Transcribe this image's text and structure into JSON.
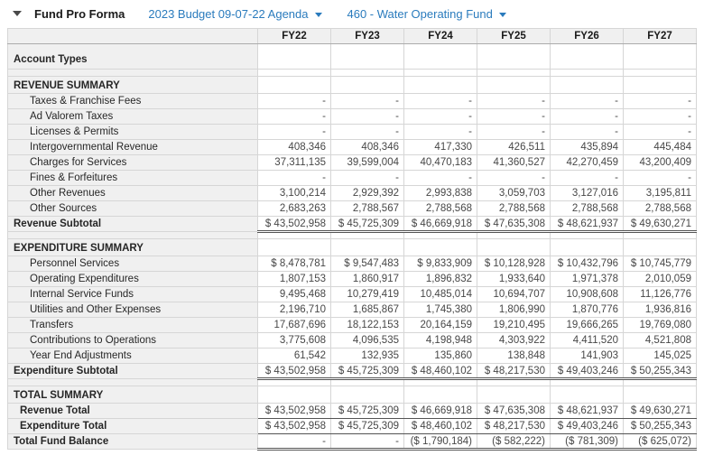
{
  "header": {
    "collapse_caret": "collapse",
    "title": "Fund Pro Forma",
    "budget_dropdown": "2023 Budget 09-07-22 Agenda",
    "fund_dropdown": "460 - Water Operating Fund"
  },
  "colors": {
    "link_blue": "#2a7bbd",
    "panel_gray": "#f0f0f0",
    "total_border": "#545454"
  },
  "table": {
    "year_columns": [
      "FY22",
      "FY23",
      "FY24",
      "FY25",
      "FY26",
      "FY27"
    ],
    "rows": [
      {
        "type": "group",
        "label": "Account Types",
        "values": [
          "",
          "",
          "",
          "",
          "",
          ""
        ]
      },
      {
        "type": "spacer",
        "label": "",
        "values": [
          "",
          "",
          "",
          "",
          "",
          ""
        ]
      },
      {
        "type": "section",
        "label": "REVENUE SUMMARY",
        "values": [
          "",
          "",
          "",
          "",
          "",
          ""
        ]
      },
      {
        "type": "detail",
        "label": "Taxes & Franchise Fees",
        "values": [
          "-",
          "-",
          "-",
          "-",
          "-",
          "-"
        ]
      },
      {
        "type": "detail",
        "label": "Ad Valorem Taxes",
        "values": [
          "-",
          "-",
          "-",
          "-",
          "-",
          "-"
        ]
      },
      {
        "type": "detail",
        "label": "Licenses & Permits",
        "values": [
          "-",
          "-",
          "-",
          "-",
          "-",
          "-"
        ]
      },
      {
        "type": "detail",
        "label": "Intergovernmental Revenue",
        "values": [
          "408,346",
          "408,346",
          "417,330",
          "426,511",
          "435,894",
          "445,484"
        ]
      },
      {
        "type": "detail",
        "label": "Charges for Services",
        "values": [
          "37,311,135",
          "39,599,004",
          "40,470,183",
          "41,360,527",
          "42,270,459",
          "43,200,409"
        ]
      },
      {
        "type": "detail",
        "label": "Fines & Forfeitures",
        "values": [
          "-",
          "-",
          "-",
          "-",
          "-",
          "-"
        ]
      },
      {
        "type": "detail",
        "label": "Other Revenues",
        "values": [
          "3,100,214",
          "2,929,392",
          "2,993,838",
          "3,059,703",
          "3,127,016",
          "3,195,811"
        ]
      },
      {
        "type": "detail",
        "label": "Other Sources",
        "values": [
          "2,683,263",
          "2,788,567",
          "2,788,568",
          "2,788,568",
          "2,788,568",
          "2,788,568"
        ]
      },
      {
        "type": "subtotal",
        "label": "Revenue Subtotal",
        "values": [
          "$ 43,502,958",
          "$ 45,725,309",
          "$ 46,669,918",
          "$ 47,635,308",
          "$ 48,621,937",
          "$ 49,630,271"
        ]
      },
      {
        "type": "spacer",
        "label": "",
        "values": [
          "",
          "",
          "",
          "",
          "",
          ""
        ]
      },
      {
        "type": "section",
        "label": "EXPENDITURE SUMMARY",
        "values": [
          "",
          "",
          "",
          "",
          "",
          ""
        ]
      },
      {
        "type": "detail",
        "label": "Personnel Services",
        "values": [
          "$ 8,478,781",
          "$ 9,547,483",
          "$ 9,833,909",
          "$ 10,128,928",
          "$ 10,432,796",
          "$ 10,745,779"
        ]
      },
      {
        "type": "detail",
        "label": "Operating Expenditures",
        "values": [
          "1,807,153",
          "1,860,917",
          "1,896,832",
          "1,933,640",
          "1,971,378",
          "2,010,059"
        ]
      },
      {
        "type": "detail",
        "label": "Internal Service Funds",
        "values": [
          "9,495,468",
          "10,279,419",
          "10,485,014",
          "10,694,707",
          "10,908,608",
          "11,126,776"
        ]
      },
      {
        "type": "detail",
        "label": "Utilities and Other Expenses",
        "values": [
          "2,196,710",
          "1,685,867",
          "1,745,380",
          "1,806,990",
          "1,870,776",
          "1,936,816"
        ]
      },
      {
        "type": "detail",
        "label": "Transfers",
        "values": [
          "17,687,696",
          "18,122,153",
          "20,164,159",
          "19,210,495",
          "19,666,265",
          "19,769,080"
        ]
      },
      {
        "type": "detail",
        "label": "Contributions to Operations",
        "values": [
          "3,775,608",
          "4,096,535",
          "4,198,948",
          "4,303,922",
          "4,411,520",
          "4,521,808"
        ]
      },
      {
        "type": "detail",
        "label": "Year End Adjustments",
        "values": [
          "61,542",
          "132,935",
          "135,860",
          "138,848",
          "141,903",
          "145,025"
        ]
      },
      {
        "type": "subtotal",
        "label": "Expenditure Subtotal",
        "values": [
          "$ 43,502,958",
          "$ 45,725,309",
          "$ 48,460,102",
          "$ 48,217,530",
          "$ 49,403,246",
          "$ 50,255,343"
        ]
      },
      {
        "type": "spacer",
        "label": "",
        "values": [
          "",
          "",
          "",
          "",
          "",
          ""
        ]
      },
      {
        "type": "section",
        "label": "TOTAL SUMMARY",
        "values": [
          "",
          "",
          "",
          "",
          "",
          ""
        ]
      },
      {
        "type": "total",
        "label": "Revenue Total",
        "values": [
          "$ 43,502,958",
          "$ 45,725,309",
          "$ 46,669,918",
          "$ 47,635,308",
          "$ 48,621,937",
          "$ 49,630,271"
        ]
      },
      {
        "type": "total",
        "label": "Expenditure Total",
        "values": [
          "$ 43,502,958",
          "$ 45,725,309",
          "$ 48,460,102",
          "$ 48,217,530",
          "$ 49,403,246",
          "$ 50,255,343"
        ]
      },
      {
        "type": "grand",
        "label": "Total Fund Balance",
        "values": [
          "-",
          "-",
          "($ 1,790,184)",
          "($ 582,222)",
          "($ 781,309)",
          "($ 625,072)"
        ]
      }
    ]
  }
}
